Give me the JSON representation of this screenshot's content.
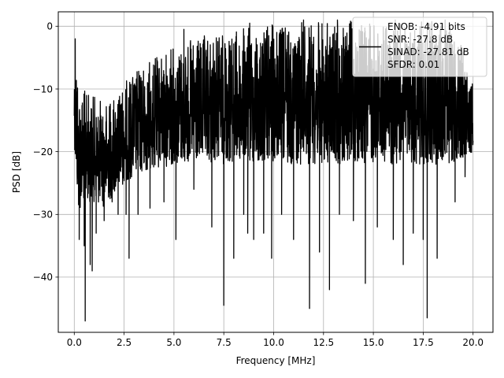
{
  "chart_data": {
    "type": "line",
    "xlabel": "Frequency [MHz]",
    "ylabel": "PSD [dB]",
    "xlim": [
      -0.8,
      21.0
    ],
    "ylim": [
      -48.8,
      2.3
    ],
    "xticks": [
      0.0,
      2.5,
      5.0,
      7.5,
      10.0,
      12.5,
      15.0,
      17.5,
      20.0
    ],
    "xtick_labels": [
      "0.0",
      "2.5",
      "5.0",
      "7.5",
      "10.0",
      "12.5",
      "15.0",
      "17.5",
      "20.0"
    ],
    "yticks": [
      0,
      -10,
      -20,
      -30,
      -40
    ],
    "ytick_labels": [
      "0",
      "−10",
      "−20",
      "−30",
      "−40"
    ],
    "grid": true,
    "legend_position": "top-right",
    "series": [
      {
        "name": "ENOB: -4.91 bits\nSNR: -27.8 dB\nSINAD: -27.81 dB\nSFDR: 0.01",
        "legend_lines": [
          "ENOB: -4.91 bits",
          "SNR: -27.8 dB",
          "SINAD: -27.81 dB",
          "SFDR: 0.01"
        ],
        "color": "#000000",
        "envelope": {
          "x": [
            0.0,
            0.1,
            0.2,
            0.5,
            1.0,
            1.5,
            2.0,
            2.5,
            3.0,
            4.0,
            5.0,
            6.0,
            7.0,
            8.0,
            9.0,
            10.0,
            11.0,
            12.0,
            13.0,
            14.0,
            15.0,
            16.0,
            17.0,
            18.0,
            19.0,
            20.0
          ],
          "upper": [
            -5,
            -2,
            -8,
            -10,
            -11,
            -12,
            -11,
            -9,
            -7,
            -5,
            -3,
            -2,
            -1,
            -0.5,
            0,
            0.5,
            0.5,
            1,
            0.5,
            1,
            1,
            0.5,
            0.5,
            1,
            0.5,
            -8
          ],
          "lower": [
            -18,
            -25,
            -30,
            -28,
            -28,
            -29,
            -27,
            -25,
            -24,
            -23,
            -22,
            -22,
            -22,
            -22,
            -22,
            -22,
            -22,
            -22,
            -22,
            -22,
            -22,
            -22,
            -22,
            -22,
            -22,
            -20
          ]
        },
        "dips": [
          {
            "x": 0.25,
            "y": -34
          },
          {
            "x": 0.5,
            "y": -35
          },
          {
            "x": 0.55,
            "y": -47
          },
          {
            "x": 0.8,
            "y": -38
          },
          {
            "x": 0.9,
            "y": -39
          },
          {
            "x": 1.1,
            "y": -33
          },
          {
            "x": 1.5,
            "y": -31
          },
          {
            "x": 1.9,
            "y": -28
          },
          {
            "x": 2.2,
            "y": -30
          },
          {
            "x": 2.6,
            "y": -30
          },
          {
            "x": 2.75,
            "y": -37
          },
          {
            "x": 3.2,
            "y": -30
          },
          {
            "x": 3.8,
            "y": -29
          },
          {
            "x": 4.5,
            "y": -28
          },
          {
            "x": 5.1,
            "y": -34
          },
          {
            "x": 6.0,
            "y": -26
          },
          {
            "x": 6.9,
            "y": -32
          },
          {
            "x": 7.5,
            "y": -44.5
          },
          {
            "x": 8.0,
            "y": -37
          },
          {
            "x": 8.5,
            "y": -30
          },
          {
            "x": 8.7,
            "y": -33
          },
          {
            "x": 9.0,
            "y": -34
          },
          {
            "x": 9.5,
            "y": -33
          },
          {
            "x": 9.9,
            "y": -37
          },
          {
            "x": 10.4,
            "y": -30
          },
          {
            "x": 11.0,
            "y": -34
          },
          {
            "x": 11.8,
            "y": -45
          },
          {
            "x": 12.3,
            "y": -36
          },
          {
            "x": 12.8,
            "y": -42
          },
          {
            "x": 13.3,
            "y": -30
          },
          {
            "x": 14.0,
            "y": -31
          },
          {
            "x": 14.6,
            "y": -41
          },
          {
            "x": 15.2,
            "y": -32
          },
          {
            "x": 16.0,
            "y": -34
          },
          {
            "x": 16.5,
            "y": -38
          },
          {
            "x": 17.0,
            "y": -33
          },
          {
            "x": 17.5,
            "y": -34
          },
          {
            "x": 17.7,
            "y": -46.5
          },
          {
            "x": 18.2,
            "y": -37
          },
          {
            "x": 19.1,
            "y": -28
          },
          {
            "x": 19.6,
            "y": -24
          }
        ],
        "peaks": [
          {
            "x": 0.05,
            "y": -2
          },
          {
            "x": 5.5,
            "y": -0.5
          },
          {
            "x": 8.8,
            "y": 0.5
          },
          {
            "x": 11.5,
            "y": 1
          },
          {
            "x": 13.2,
            "y": 1
          },
          {
            "x": 16.1,
            "y": 1
          },
          {
            "x": 18.6,
            "y": 1
          }
        ]
      }
    ]
  }
}
